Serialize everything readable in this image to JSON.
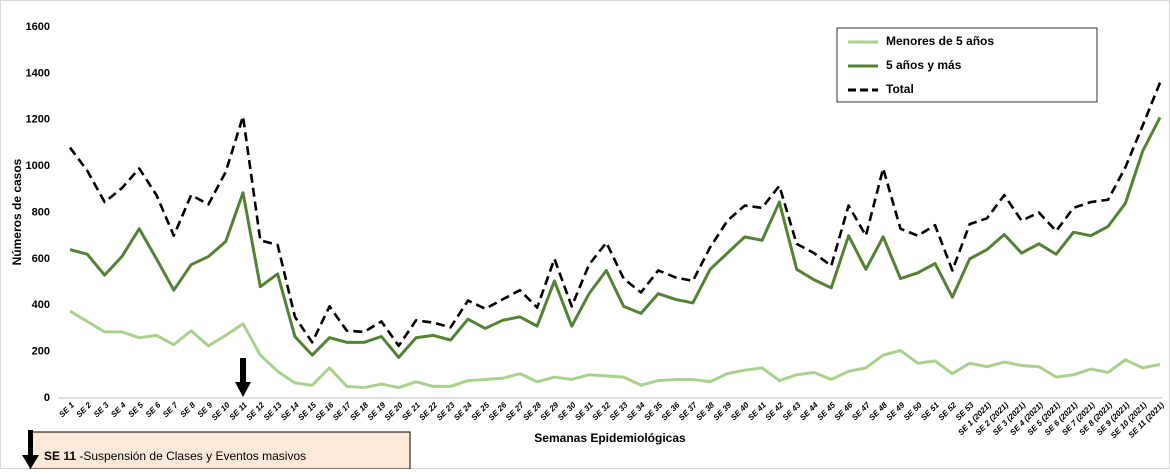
{
  "chart_data": {
    "type": "line",
    "y_label": "Números de casos",
    "x_label": "Semanas Epidemiológicas",
    "categories": [
      "SE 1",
      "SE 2",
      "SE 3",
      "SE 4",
      "SE 5",
      "SE 6",
      "SE 7",
      "SE 8",
      "SE 9",
      "SE 10",
      "SE 11",
      "SE 12",
      "SE 13",
      "SE 14",
      "SE 15",
      "SE 16",
      "SE 17",
      "SE 18",
      "SE 19",
      "SE 20",
      "SE 21",
      "SE 22",
      "SE 23",
      "SE 24",
      "SE 25",
      "SE 26",
      "SE 27",
      "SE 28",
      "SE 29",
      "SE 30",
      "SE 31",
      "SE 32",
      "SE 33",
      "SE 34",
      "SE 35",
      "SE 36",
      "SE 37",
      "SE 38",
      "SE 39",
      "SE 40",
      "SE 41",
      "SE 42",
      "SE 43",
      "SE 44",
      "SE 45",
      "SE 46",
      "SE 47",
      "SE 48",
      "SE 49",
      "SE 50",
      "SE 51",
      "SE 52",
      "SE 53",
      "SE 1 (2021)",
      "SE 2 (2021)",
      "SE 3 (2021)",
      "SE 4 (2021)",
      "SE 5 (2021)",
      "SE 6 (2021)",
      "SE 7 (2021)",
      "SE 8 (2021)",
      "SE 9 (2021)",
      "SE 10 (2021)",
      "SE 11 (2021)"
    ],
    "series": [
      {
        "name": "Menores de 5 años",
        "color": "#a9d18e",
        "dash": false,
        "values": [
          375,
          330,
          285,
          285,
          260,
          270,
          230,
          290,
          225,
          270,
          320,
          185,
          115,
          65,
          55,
          130,
          50,
          45,
          60,
          45,
          70,
          50,
          50,
          75,
          80,
          85,
          105,
          70,
          90,
          80,
          100,
          95,
          90,
          55,
          75,
          80,
          80,
          70,
          105,
          120,
          130,
          75,
          100,
          110,
          80,
          115,
          130,
          185,
          205,
          150,
          160,
          105,
          150,
          135,
          155,
          140,
          135,
          90,
          100,
          125,
          110,
          165,
          130,
          145
        ]
      },
      {
        "name": "5 años y más",
        "color": "#548235",
        "dash": false,
        "values": [
          640,
          620,
          530,
          610,
          730,
          600,
          465,
          575,
          610,
          675,
          885,
          480,
          535,
          265,
          185,
          260,
          240,
          240,
          265,
          175,
          260,
          270,
          250,
          340,
          300,
          335,
          350,
          310,
          505,
          310,
          450,
          550,
          395,
          365,
          450,
          425,
          410,
          555,
          625,
          695,
          680,
          845,
          555,
          510,
          475,
          700,
          555,
          695,
          515,
          540,
          580,
          435,
          600,
          640,
          705,
          625,
          665,
          620,
          715,
          700,
          740,
          840,
          1065,
          1210
        ]
      },
      {
        "name": "Total",
        "color": "#000000",
        "dash": true,
        "values": [
          1080,
          980,
          845,
          905,
          990,
          875,
          700,
          875,
          835,
          975,
          1215,
          680,
          660,
          350,
          240,
          395,
          290,
          285,
          330,
          225,
          335,
          325,
          305,
          420,
          385,
          425,
          465,
          390,
          600,
          395,
          575,
          670,
          515,
          455,
          550,
          520,
          505,
          650,
          765,
          830,
          820,
          915,
          665,
          625,
          570,
          830,
          700,
          990,
          730,
          700,
          745,
          550,
          750,
          775,
          875,
          765,
          800,
          720,
          820,
          845,
          855,
          995,
          1175,
          1360
        ]
      }
    ],
    "ylim": [
      0,
      1600
    ],
    "yticks": [
      0,
      200,
      400,
      600,
      800,
      1000,
      1200,
      1400,
      1600
    ],
    "grid": false,
    "legend": "top-right",
    "annotation": {
      "bold": "SE 11",
      "text": "-Suspensión de Clases  y Eventos masivos"
    }
  }
}
